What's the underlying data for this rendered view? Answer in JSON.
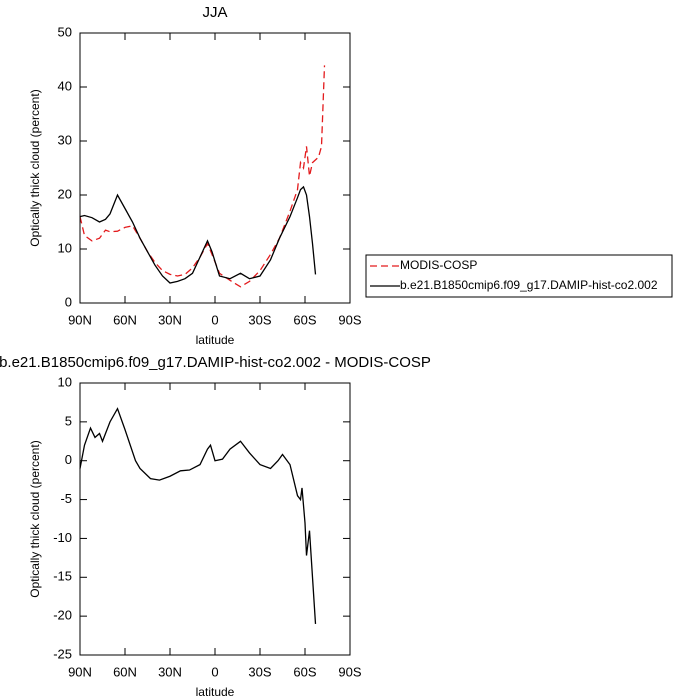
{
  "chart_data": [
    {
      "type": "line",
      "title": "JJA",
      "xlabel": "latitude",
      "ylabel": "Optically thick cloud (percent)",
      "x": [
        90,
        87,
        82,
        77,
        73,
        70,
        65,
        60,
        55,
        50,
        45,
        40,
        35,
        30,
        25,
        20,
        15,
        10,
        5,
        2,
        -3,
        -10,
        -17,
        -23,
        -30,
        -37,
        -43,
        -50,
        -55,
        -57,
        -59,
        -61,
        -63,
        -65,
        -67,
        -69,
        -71,
        -73
      ],
      "series": [
        {
          "name": "MODIS-COSP",
          "color": "#e31a1c",
          "dashed": true,
          "values": [
            16,
            12.5,
            11.5,
            12,
            13.5,
            13.2,
            13.3,
            14,
            14.3,
            12,
            9.5,
            7.5,
            6,
            5.3,
            5,
            5.3,
            6.5,
            8.5,
            11,
            9,
            5.5,
            4.2,
            3,
            4,
            6,
            9,
            12,
            17,
            21,
            26,
            25,
            29,
            23.5,
            26,
            26.5,
            27,
            29,
            44
          ]
        },
        {
          "name": "b.e21.B1850cmip6.f09_g17.DAMIP-hist-co2.002",
          "color": "#000000",
          "dashed": false,
          "values": [
            16,
            16.2,
            15.8,
            15,
            15.5,
            16.5,
            20,
            17.5,
            15,
            12,
            9.5,
            7,
            5,
            3.7,
            4,
            4.5,
            5.5,
            8.5,
            11.5,
            9.5,
            5,
            4.5,
            5.5,
            4.5,
            5,
            8,
            12,
            16,
            19.5,
            21,
            21.5,
            20,
            16,
            11,
            5.3,
            null,
            null,
            null
          ]
        }
      ],
      "xlim": [
        90,
        -90
      ],
      "xticks": [
        {
          "value": 90,
          "label": "90N"
        },
        {
          "value": 60,
          "label": "60N"
        },
        {
          "value": 30,
          "label": "30N"
        },
        0,
        {
          "value": -30,
          "label": "30S"
        },
        {
          "value": -60,
          "label": "60S"
        },
        {
          "value": -90,
          "label": "90S"
        }
      ],
      "ylim": [
        0,
        50
      ],
      "yticks": [
        0,
        10,
        20,
        30,
        40,
        50
      ],
      "legend": "right"
    },
    {
      "type": "line",
      "title": "b.e21.B1850cmip6.f09_g17.DAMIP-hist-co2.002 - MODIS-COSP",
      "xlabel": "latitude",
      "ylabel": "Optically thick cloud (percent)",
      "x": [
        90,
        87,
        83,
        80,
        77,
        75,
        70,
        65,
        60,
        53,
        50,
        43,
        37,
        30,
        23,
        17,
        10,
        5,
        3,
        0,
        -5,
        -10,
        -17,
        -23,
        -30,
        -37,
        -42,
        -45,
        -50,
        -55,
        -57,
        -58,
        -60,
        -61,
        -63,
        -65,
        -67
      ],
      "series": [
        {
          "color": "#000000",
          "dashed": false,
          "values": [
            -1,
            2,
            4.2,
            3,
            3.5,
            2.5,
            5,
            6.7,
            4,
            0,
            -1,
            -2.3,
            -2.5,
            -2,
            -1.3,
            -1.2,
            -0.5,
            1.5,
            2,
            0,
            0.2,
            1.5,
            2.5,
            1,
            -0.5,
            -1,
            0,
            0.8,
            -0.5,
            -4.5,
            -5,
            -3.5,
            -8,
            -12.2,
            -9,
            -15,
            -21
          ]
        }
      ],
      "xlim": [
        90,
        -90
      ],
      "xticks": [
        {
          "value": 90,
          "label": "90N"
        },
        {
          "value": 60,
          "label": "60N"
        },
        {
          "value": 30,
          "label": "30N"
        },
        0,
        {
          "value": -30,
          "label": "30S"
        },
        {
          "value": -60,
          "label": "60S"
        },
        {
          "value": -90,
          "label": "90S"
        }
      ],
      "ylim": [
        -25,
        10
      ],
      "yticks": [
        -25,
        -20,
        -15,
        -10,
        -5,
        0,
        5,
        10
      ]
    }
  ]
}
